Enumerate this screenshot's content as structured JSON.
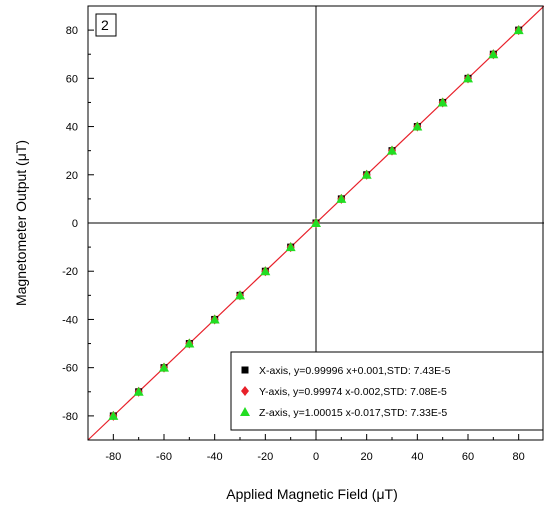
{
  "chart_data": {
    "type": "scatter",
    "panel_label": "2",
    "xlabel": "Applied Magnetic Field (μT)",
    "ylabel": "Magnetometer Output (μT)",
    "xlim": [
      -90,
      90
    ],
    "ylim": [
      -90,
      90
    ],
    "xticks": [
      -80,
      -60,
      -40,
      -20,
      0,
      20,
      40,
      60,
      80
    ],
    "yticks": [
      -80,
      -60,
      -40,
      -20,
      0,
      20,
      40,
      60,
      80
    ],
    "grid": false,
    "zero_lines": true,
    "legend_position": "bottom-right",
    "fit_line": {
      "color": "#e8202a",
      "from": -90,
      "to": 90
    },
    "series": [
      {
        "name": "X-axis, y=0.99996 x+0.001,STD: 7.43E-5",
        "marker": "square",
        "color": "#000000",
        "x": [
          -80,
          -70,
          -60,
          -50,
          -40,
          -30,
          -20,
          -10,
          0,
          10,
          20,
          30,
          40,
          50,
          60,
          70,
          80
        ],
        "y": [
          -80,
          -70,
          -60,
          -50,
          -40,
          -30,
          -20,
          -10,
          0,
          10,
          20,
          30,
          40,
          50,
          60,
          70,
          80
        ]
      },
      {
        "name": "Y-axis, y=0.99974 x-0.002,STD: 7.08E-5",
        "marker": "diamond",
        "color": "#e8202a",
        "x": [
          -80,
          -70,
          -60,
          -50,
          -40,
          -30,
          -20,
          -10,
          0,
          10,
          20,
          30,
          40,
          50,
          60,
          70,
          80
        ],
        "y": [
          -80,
          -70,
          -60,
          -50,
          -40,
          -30,
          -20,
          -10,
          0,
          10,
          20,
          30,
          40,
          50,
          60,
          70,
          80
        ]
      },
      {
        "name": "Z-axis, y=1.00015 x-0.017,STD: 7.33E-5",
        "marker": "triangle",
        "color": "#22dd22",
        "x": [
          -80,
          -70,
          -60,
          -50,
          -40,
          -30,
          -20,
          -10,
          0,
          10,
          20,
          30,
          40,
          50,
          60,
          70,
          80
        ],
        "y": [
          -80,
          -70,
          -60,
          -50,
          -40,
          -30,
          -20,
          -10,
          0,
          10,
          20,
          30,
          40,
          50,
          60,
          70,
          80
        ]
      }
    ]
  }
}
